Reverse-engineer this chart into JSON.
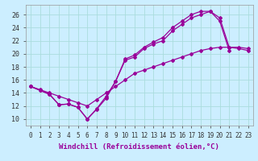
{
  "xlabel": "Windchill (Refroidissement éolien,°C)",
  "bg_color": "#cceeff",
  "grid_color": "#aadddd",
  "line_color": "#990099",
  "xlim": [
    -0.5,
    23.5
  ],
  "ylim": [
    9.0,
    27.5
  ],
  "xticks": [
    0,
    1,
    2,
    3,
    4,
    5,
    6,
    7,
    8,
    9,
    10,
    11,
    12,
    13,
    14,
    15,
    16,
    17,
    18,
    19,
    20,
    21,
    22,
    23
  ],
  "yticks": [
    10,
    12,
    14,
    16,
    18,
    20,
    22,
    24,
    26
  ],
  "s1_x": [
    0,
    1,
    2,
    3,
    4,
    5,
    6,
    7,
    8,
    9,
    10,
    11,
    12,
    13,
    14,
    15,
    16,
    17,
    18,
    19,
    20,
    21
  ],
  "s1_y": [
    15.0,
    14.4,
    13.8,
    12.2,
    12.3,
    11.8,
    10.0,
    11.5,
    13.2,
    15.8,
    19.0,
    19.5,
    20.8,
    21.5,
    22.0,
    23.5,
    24.5,
    25.5,
    26.0,
    26.5,
    25.0,
    20.5
  ],
  "s2_x": [
    0,
    1,
    2,
    3,
    4,
    5,
    6,
    7,
    8,
    9,
    10,
    11,
    12,
    13,
    14,
    15,
    16,
    17,
    18,
    19,
    20,
    21,
    22,
    23
  ],
  "s2_y": [
    15.0,
    14.5,
    14.0,
    13.5,
    13.0,
    12.5,
    12.0,
    13.0,
    14.0,
    15.0,
    16.0,
    17.0,
    17.5,
    18.0,
    18.5,
    19.0,
    19.5,
    20.0,
    20.5,
    20.8,
    21.0,
    21.0,
    21.0,
    20.8
  ],
  "s3_x": [
    0,
    1,
    2,
    3,
    4,
    5,
    6,
    7,
    8,
    9,
    10,
    11,
    12,
    13,
    14,
    15,
    16,
    17,
    18,
    19,
    20,
    21,
    22,
    23
  ],
  "s3_y": [
    15.0,
    14.4,
    13.8,
    12.2,
    12.3,
    11.8,
    10.0,
    11.6,
    13.5,
    15.8,
    19.2,
    19.8,
    21.0,
    21.8,
    22.5,
    24.0,
    25.0,
    26.0,
    26.5,
    26.5,
    25.5,
    21.0,
    20.8,
    20.5
  ],
  "xlabel_fontsize": 6.5,
  "tick_fontsize": 5.5
}
